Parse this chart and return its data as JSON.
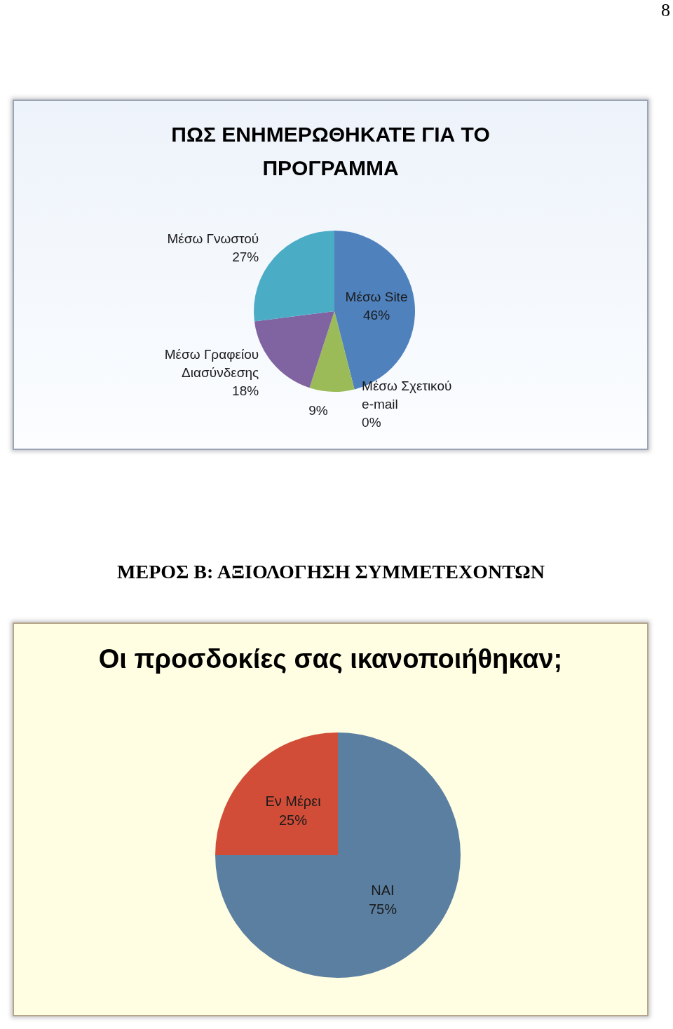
{
  "chart_data": [
    {
      "type": "pie",
      "title": "ΠΩΣ ΕΝΗΜΕΡΩΘΗΚΑΤΕ ΓΙΑ ΤΟ ΠΡΟΓΡΑΜΜΑ",
      "categories": [
        "Μέσω Site",
        "Μέσω Σχετικού e-mail",
        null,
        "Μέσω Γραφείου Διασύνδεσης",
        "Μέσω Γνωστού"
      ],
      "values": [
        46,
        0,
        9,
        18,
        27
      ],
      "value_labels": [
        "46%",
        "0%",
        "9%",
        "18%",
        "27%"
      ],
      "colors": [
        "#4f81bd",
        "#632523",
        "#9bbb59",
        "#8064a2",
        "#4bacc6"
      ],
      "annotations": [
        "8"
      ]
    },
    {
      "type": "pie",
      "title": "Οι προσδοκίες σας ικανοποιήθηκαν;",
      "categories": [
        "ΝΑΙ",
        "Εν Μέρει"
      ],
      "values": [
        75,
        25
      ],
      "value_labels": [
        "75%",
        "25%"
      ],
      "colors": [
        "#5b7fa1",
        "#d14d38"
      ],
      "annotations": [
        "ΜΕΡΟΣ Β: ΑΞΙΟΛΟΓΗΣΗ ΣΥΜΜΕΤΕΧΟΝΤΩΝ"
      ]
    }
  ]
}
